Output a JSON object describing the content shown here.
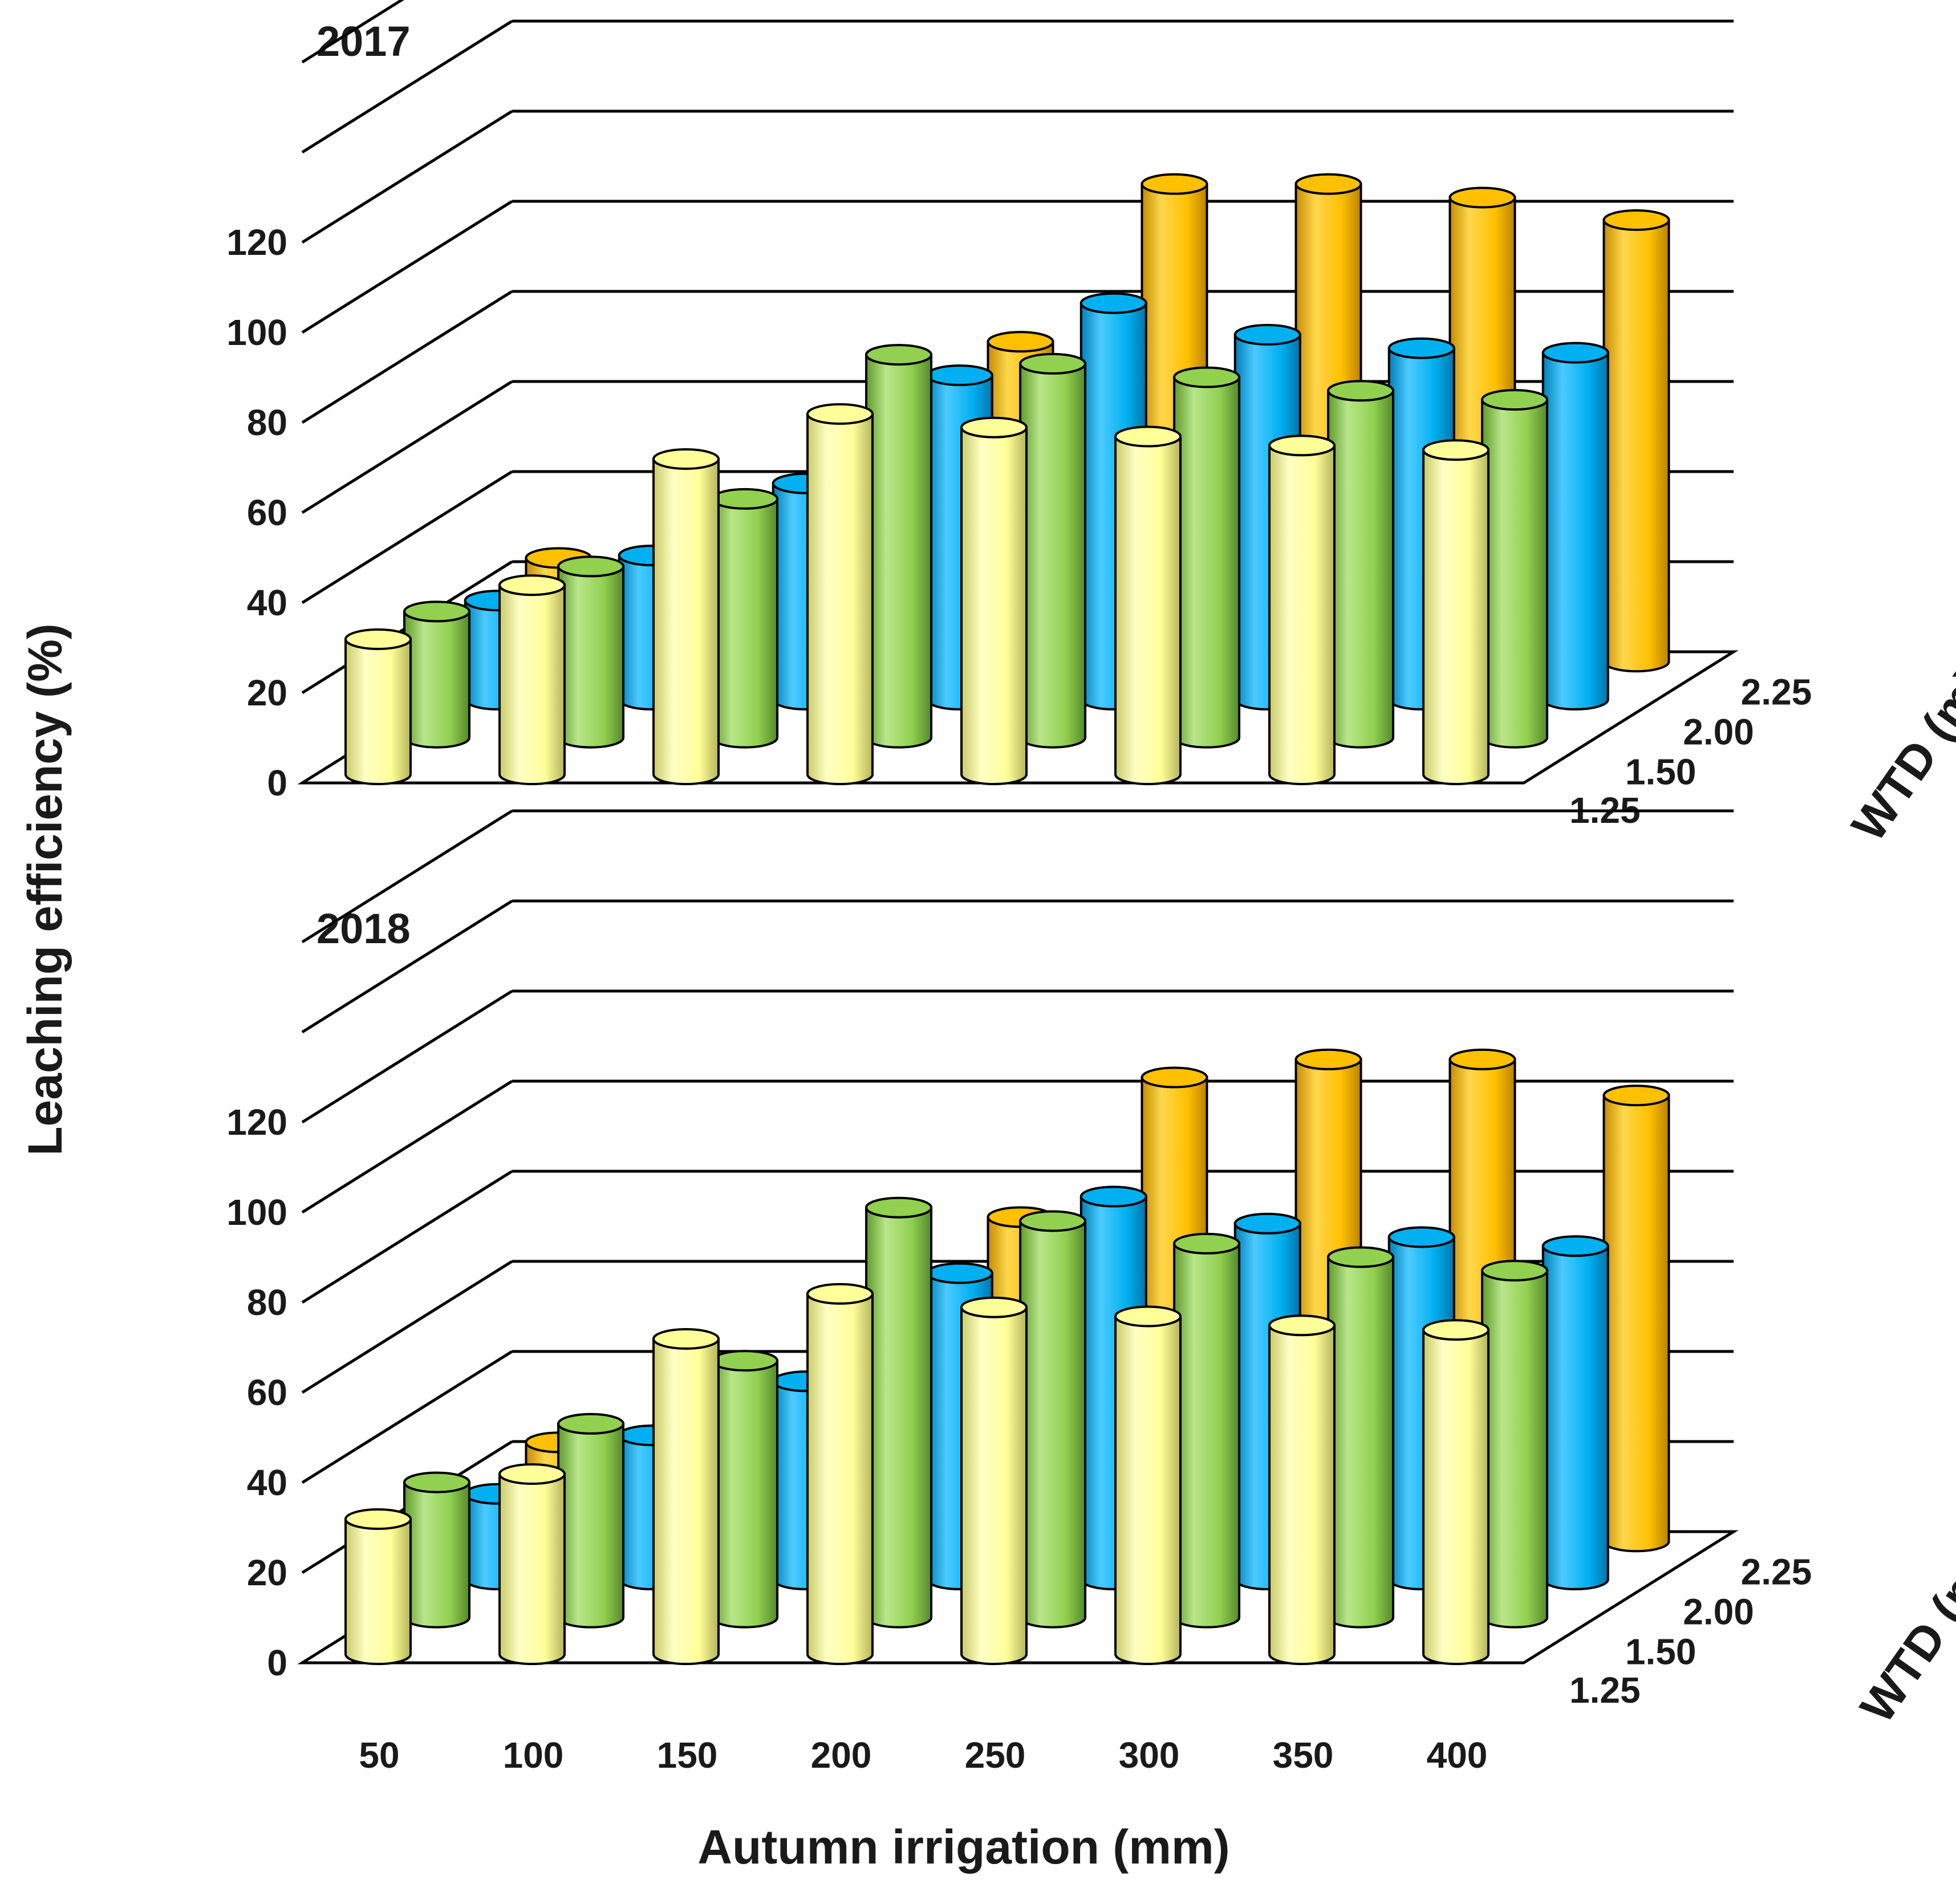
{
  "chart_data": {
    "type": "bar",
    "subtype": "3d-cylinder",
    "xlabel": "Autumn irrigation (mm)",
    "ylabel": "Leaching efficiency (%)",
    "zlabel": "WTD (m)",
    "categories": [
      "50",
      "100",
      "150",
      "200",
      "250",
      "300",
      "350",
      "400"
    ],
    "y_ticks": [
      "0",
      "20",
      "40",
      "60",
      "80",
      "100",
      "120"
    ],
    "ylim": [
      0,
      120
    ],
    "depths": [
      {
        "label": "1.25",
        "color": "#ffff99"
      },
      {
        "label": "1.50",
        "color": "#92d050"
      },
      {
        "label": "2.00",
        "color": "#00b0f0"
      },
      {
        "label": "2.25",
        "color": "#ffc000"
      }
    ],
    "panels": [
      {
        "title": "2017",
        "series": [
          {
            "name": "1.25",
            "values": [
              30,
              42,
              70,
              80,
              77,
              75,
              73,
              72
            ]
          },
          {
            "name": "1.50",
            "values": [
              28,
              38,
              53,
              85,
              83,
              80,
              77,
              75
            ]
          },
          {
            "name": "2.00",
            "values": [
              22,
              32,
              48,
              72,
              88,
              81,
              78,
              77
            ]
          },
          {
            "name": "2.25",
            "values": [
              23,
              23,
              23,
              71,
              106,
              106,
              103,
              98
            ]
          }
        ]
      },
      {
        "title": "2018",
        "series": [
          {
            "name": "1.25",
            "values": [
              30,
              40,
              70,
              80,
              77,
              75,
              73,
              72
            ]
          },
          {
            "name": "1.50",
            "values": [
              30,
              43,
              57,
              91,
              88,
              83,
              80,
              77
            ]
          },
          {
            "name": "2.00",
            "values": [
              19,
              32,
              44,
              68,
              85,
              79,
              76,
              74
            ]
          },
          {
            "name": "2.25",
            "values": [
              22,
              22,
              22,
              72,
              103,
              107,
              107,
              99
            ]
          }
        ]
      }
    ]
  }
}
